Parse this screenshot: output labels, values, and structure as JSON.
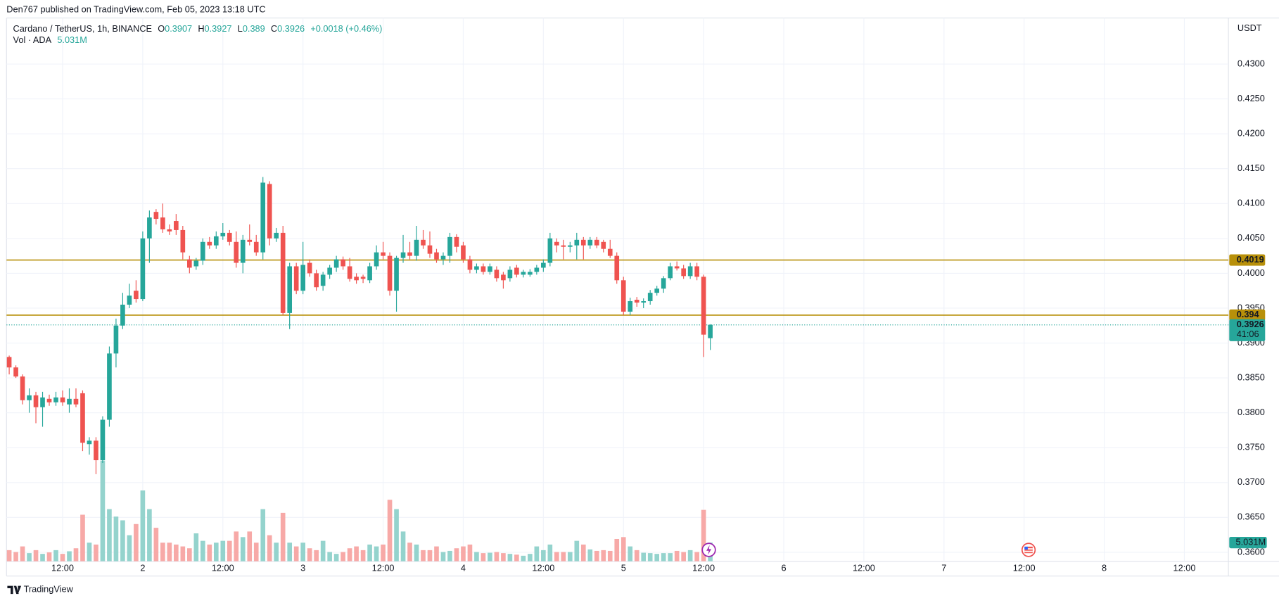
{
  "chart_data": {
    "type": "candlestick",
    "publisher": "Den767 published on TradingView.com, Feb 05, 2023 13:18 UTC",
    "symbol": "Cardano / TetherUS, 1h, BINANCE",
    "ohlc_keys": [
      "O",
      "H",
      "L",
      "C"
    ],
    "change": "+0.0018 (+0.46%)",
    "volume_title": "Vol · ADA",
    "volume_readout": "5.031M",
    "currency": "USDT",
    "countdown": "41:06",
    "brand": "TradingView",
    "up_color": "#26a69a",
    "down_color": "#ef5350",
    "volume_up_color": "#94d3cd",
    "volume_down_color": "#f7a9a7",
    "grid": true,
    "x": [
      4,
      5,
      6,
      7,
      8,
      9,
      10,
      11,
      12,
      13,
      14,
      15,
      16,
      17,
      18,
      19,
      20,
      21,
      22,
      23,
      24,
      25,
      26,
      27,
      28,
      29,
      30,
      31,
      32,
      33,
      34,
      35,
      36,
      37,
      38,
      39,
      40,
      41,
      42,
      43,
      44,
      45,
      46,
      47,
      48,
      49,
      50,
      51,
      52,
      53,
      54,
      55,
      56,
      57,
      58,
      59,
      60,
      61,
      62,
      63,
      64,
      65,
      66,
      67,
      68,
      69,
      70,
      71,
      72,
      73,
      74,
      75,
      76,
      77,
      78,
      79,
      80,
      81,
      82,
      83,
      84,
      85,
      86,
      87,
      88,
      89,
      90,
      91,
      92,
      93,
      94,
      95,
      96,
      97,
      98,
      99,
      100,
      101,
      102,
      103,
      104,
      105,
      106,
      107,
      108,
      109
    ],
    "open": [
      0.388,
      0.3865,
      0.3852,
      0.3818,
      0.3825,
      0.3808,
      0.382,
      0.3815,
      0.3822,
      0.3812,
      0.382,
      0.3828,
      0.3755,
      0.376,
      0.3732,
      0.379,
      0.3885,
      0.3925,
      0.3955,
      0.3975,
      0.3963,
      0.405,
      0.4088,
      0.408,
      0.4063,
      0.4075,
      0.4062,
      0.402,
      0.401,
      0.4018,
      0.4045,
      0.404,
      0.4053,
      0.4058,
      0.4045,
      0.4015,
      0.4048,
      0.4045,
      0.403,
      0.4128,
      0.405,
      0.4058,
      0.3943,
      0.401,
      0.3975,
      0.4015,
      0.4,
      0.3982,
      0.3998,
      0.4008,
      0.402,
      0.401,
      0.3995,
      0.3995,
      0.399,
      0.401,
      0.403,
      0.4025,
      0.3975,
      0.4022,
      0.403,
      0.4025,
      0.4048,
      0.404,
      0.403,
      0.402,
      0.4025,
      0.4052,
      0.404,
      0.402,
      0.4005,
      0.401,
      0.4002,
      0.4005,
      0.3998,
      0.3993,
      0.4008,
      0.3998,
      0.3998,
      0.4002,
      0.4008,
      0.4015,
      0.4045,
      0.404,
      0.4038,
      0.404,
      0.4048,
      0.404,
      0.4048,
      0.4045,
      0.4035,
      0.4025,
      0.399,
      0.3945,
      0.3962,
      0.3958,
      0.396,
      0.3972,
      0.3978,
      0.3993,
      0.401,
      0.4007,
      0.3996,
      0.401,
      0.3995,
      0.3907
    ],
    "high": [
      0.3882,
      0.3868,
      0.3855,
      0.3835,
      0.383,
      0.383,
      0.3826,
      0.383,
      0.3832,
      0.3835,
      0.3835,
      0.3832,
      0.3765,
      0.3765,
      0.3795,
      0.3895,
      0.3935,
      0.3972,
      0.3985,
      0.399,
      0.406,
      0.409,
      0.4092,
      0.41,
      0.407,
      0.4085,
      0.4068,
      0.4025,
      0.4022,
      0.405,
      0.4052,
      0.406,
      0.4072,
      0.4062,
      0.406,
      0.4055,
      0.407,
      0.4055,
      0.4138,
      0.4132,
      0.4065,
      0.4068,
      0.4015,
      0.4015,
      0.4045,
      0.402,
      0.4005,
      0.4002,
      0.4012,
      0.4025,
      0.4024,
      0.4022,
      0.4,
      0.3998,
      0.4015,
      0.404,
      0.4045,
      0.403,
      0.4025,
      0.4055,
      0.4045,
      0.4068,
      0.4062,
      0.406,
      0.4035,
      0.403,
      0.4058,
      0.4056,
      0.4045,
      0.4025,
      0.4014,
      0.4014,
      0.4014,
      0.401,
      0.4002,
      0.401,
      0.4012,
      0.4005,
      0.4006,
      0.4012,
      0.402,
      0.4058,
      0.405,
      0.4048,
      0.4045,
      0.4058,
      0.4052,
      0.4052,
      0.4052,
      0.4048,
      0.4048,
      0.403,
      0.3995,
      0.3965,
      0.3966,
      0.3964,
      0.3976,
      0.3982,
      0.3996,
      0.4015,
      0.4017,
      0.4012,
      0.4015,
      0.4015,
      0.3998,
      0.3927
    ],
    "low": [
      0.3855,
      0.385,
      0.3812,
      0.38,
      0.3785,
      0.378,
      0.381,
      0.381,
      0.381,
      0.38,
      0.3808,
      0.3745,
      0.374,
      0.3712,
      0.3728,
      0.378,
      0.3865,
      0.392,
      0.395,
      0.3958,
      0.396,
      0.4015,
      0.407,
      0.4058,
      0.4055,
      0.4055,
      0.402,
      0.4,
      0.4005,
      0.4012,
      0.4035,
      0.4035,
      0.4048,
      0.404,
      0.4008,
      0.4,
      0.404,
      0.4025,
      0.402,
      0.404,
      0.4045,
      0.394,
      0.392,
      0.397,
      0.397,
      0.3995,
      0.3975,
      0.3975,
      0.3992,
      0.4002,
      0.4005,
      0.3988,
      0.3985,
      0.3986,
      0.3986,
      0.4005,
      0.402,
      0.3968,
      0.3945,
      0.4015,
      0.402,
      0.4018,
      0.4035,
      0.4022,
      0.4015,
      0.4012,
      0.4015,
      0.403,
      0.4015,
      0.4,
      0.4,
      0.3998,
      0.3998,
      0.3988,
      0.3978,
      0.3988,
      0.3994,
      0.3994,
      0.3995,
      0.3998,
      0.4002,
      0.401,
      0.403,
      0.402,
      0.403,
      0.402,
      0.402,
      0.4035,
      0.4036,
      0.403,
      0.4022,
      0.3985,
      0.394,
      0.394,
      0.3952,
      0.395,
      0.3955,
      0.3968,
      0.3972,
      0.399,
      0.4004,
      0.3992,
      0.3992,
      0.399,
      0.388,
      0.389
    ],
    "close": [
      0.3865,
      0.3852,
      0.3818,
      0.3825,
      0.3808,
      0.3822,
      0.3815,
      0.3822,
      0.3815,
      0.382,
      0.3812,
      0.3757,
      0.376,
      0.3732,
      0.379,
      0.3885,
      0.3925,
      0.3955,
      0.3968,
      0.3963,
      0.405,
      0.408,
      0.4078,
      0.4063,
      0.406,
      0.4062,
      0.403,
      0.4008,
      0.4018,
      0.4045,
      0.404,
      0.4053,
      0.4058,
      0.4045,
      0.4015,
      0.4048,
      0.4045,
      0.403,
      0.413,
      0.405,
      0.4058,
      0.3943,
      0.401,
      0.3975,
      0.4012,
      0.4,
      0.398,
      0.3998,
      0.4008,
      0.402,
      0.401,
      0.3992,
      0.399,
      0.3992,
      0.401,
      0.403,
      0.4025,
      0.3975,
      0.4022,
      0.403,
      0.4025,
      0.4048,
      0.404,
      0.4028,
      0.402,
      0.4025,
      0.4052,
      0.4038,
      0.402,
      0.4005,
      0.401,
      0.4002,
      0.401,
      0.3993,
      0.399,
      0.4005,
      0.3998,
      0.4002,
      0.4002,
      0.4008,
      0.4015,
      0.405,
      0.404,
      0.4038,
      0.404,
      0.4048,
      0.404,
      0.4048,
      0.404,
      0.4035,
      0.4025,
      0.399,
      0.3945,
      0.396,
      0.3958,
      0.396,
      0.3972,
      0.3978,
      0.3993,
      0.401,
      0.4007,
      0.3996,
      0.401,
      0.3995,
      0.3912,
      0.3926
    ],
    "volume": [
      3,
      2.5,
      4,
      2.2,
      3,
      2,
      2.4,
      3,
      2,
      2.7,
      3.5,
      12.5,
      5,
      4.5,
      27,
      14,
      12,
      11,
      7,
      10,
      19,
      14,
      9,
      5,
      5,
      4.5,
      4,
      3.5,
      7.5,
      5.5,
      4.5,
      5,
      5.5,
      5.5,
      8,
      6.5,
      8,
      5,
      14,
      7,
      5,
      13,
      5,
      4,
      5,
      3.5,
      3,
      5.5,
      2.5,
      2,
      2.5,
      3.5,
      4,
      3,
      4.5,
      4,
      4.5,
      16.5,
      14,
      8,
      5,
      4.5,
      3,
      3,
      4,
      2.5,
      2.8,
      3.5,
      4,
      4.5,
      2.5,
      2.2,
      2.3,
      2.5,
      2.2,
      2,
      1.8,
      1.5,
      2,
      4,
      3,
      4.5,
      2.5,
      2.5,
      2.5,
      5.5,
      4.5,
      3.2,
      2.8,
      3,
      2.8,
      6,
      6.5,
      4,
      3,
      2.3,
      2.2,
      2,
      2.2,
      2.2,
      2.8,
      2.5,
      3,
      2.5,
      13.8,
      5.031
    ],
    "volume_ylim": [
      0,
      28
    ],
    "xlim": [
      3.6,
      186.6
    ],
    "xticks": [
      {
        "value": 12,
        "label": "12:00"
      },
      {
        "value": 24,
        "label": "2"
      },
      {
        "value": 36,
        "label": "12:00"
      },
      {
        "value": 48,
        "label": "3"
      },
      {
        "value": 60,
        "label": "12:00"
      },
      {
        "value": 72,
        "label": "4"
      },
      {
        "value": 84,
        "label": "12:00"
      },
      {
        "value": 96,
        "label": "5"
      },
      {
        "value": 108,
        "label": "12:00"
      },
      {
        "value": 120,
        "label": "6"
      },
      {
        "value": 132,
        "label": "12:00"
      },
      {
        "value": 144,
        "label": "7"
      },
      {
        "value": 156,
        "label": "12:00"
      },
      {
        "value": 168,
        "label": "8"
      },
      {
        "value": 180,
        "label": "12:00"
      }
    ],
    "ylim": [
      0.3587,
      0.4366
    ],
    "yticks": [
      {
        "value": 0.36,
        "label": "0.3600"
      },
      {
        "value": 0.365,
        "label": "0.3650"
      },
      {
        "value": 0.37,
        "label": "0.3700"
      },
      {
        "value": 0.375,
        "label": "0.3750"
      },
      {
        "value": 0.38,
        "label": "0.3800"
      },
      {
        "value": 0.385,
        "label": "0.3850"
      },
      {
        "value": 0.39,
        "label": "0.3900"
      },
      {
        "value": 0.395,
        "label": "0.3950"
      },
      {
        "value": 0.4,
        "label": "0.4000"
      },
      {
        "value": 0.405,
        "label": "0.4050"
      },
      {
        "value": 0.41,
        "label": "0.4100"
      },
      {
        "value": 0.415,
        "label": "0.4150"
      },
      {
        "value": 0.42,
        "label": "0.4200"
      },
      {
        "value": 0.425,
        "label": "0.4250"
      },
      {
        "value": 0.43,
        "label": "0.4300"
      }
    ],
    "levels": [
      {
        "value": 0.4019,
        "color": "#b8900a"
      },
      {
        "value": 0.394,
        "color": "#b8900a"
      }
    ]
  }
}
